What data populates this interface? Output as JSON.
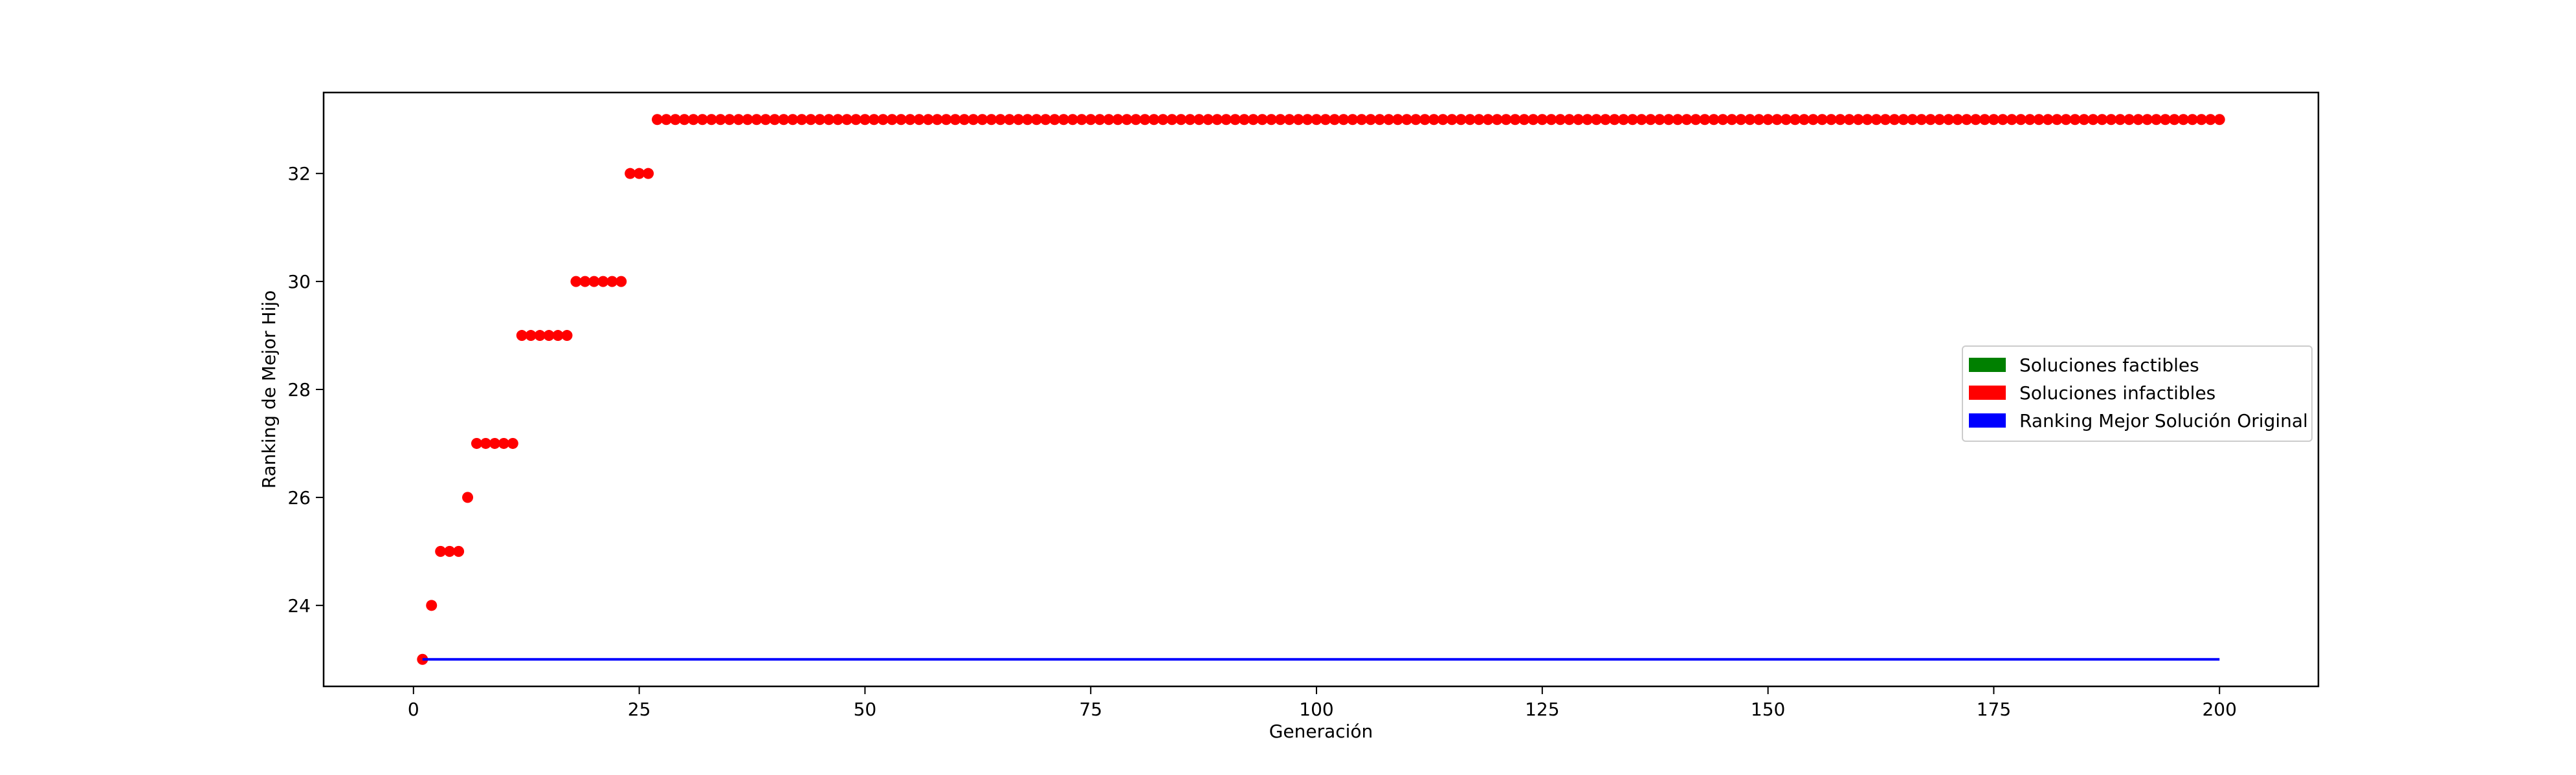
{
  "chart_data": {
    "type": "scatter",
    "title": "",
    "xlabel": "Generación",
    "ylabel": "Ranking de Mejor Hijo",
    "xlim": [
      -9.95,
      210.95
    ],
    "ylim": [
      22.5,
      33.5
    ],
    "xticks": [
      0,
      25,
      50,
      75,
      100,
      125,
      150,
      175,
      200
    ],
    "yticks": [
      24,
      26,
      28,
      30,
      32
    ],
    "grid": false,
    "legend_position": "center-right",
    "legend": [
      {
        "label": "Soluciones factibles",
        "color": "#008000"
      },
      {
        "label": "Soluciones infactibles",
        "color": "#ff0000"
      },
      {
        "label": "Ranking Mejor Solución Original",
        "color": "#0000ff"
      }
    ],
    "series": [
      {
        "kind": "scatter",
        "color": "#ff0000",
        "points": [
          [
            1,
            23
          ],
          [
            2,
            24
          ],
          [
            3,
            25
          ],
          [
            4,
            25
          ],
          [
            5,
            25
          ],
          [
            6,
            26
          ],
          [
            7,
            27
          ],
          [
            8,
            27
          ],
          [
            9,
            27
          ],
          [
            10,
            27
          ],
          [
            11,
            27
          ],
          [
            12,
            29
          ],
          [
            13,
            29
          ],
          [
            14,
            29
          ],
          [
            15,
            29
          ],
          [
            16,
            29
          ],
          [
            17,
            29
          ],
          [
            18,
            30
          ],
          [
            19,
            30
          ],
          [
            20,
            30
          ],
          [
            21,
            30
          ],
          [
            22,
            30
          ],
          [
            23,
            30
          ],
          [
            24,
            32
          ],
          [
            25,
            32
          ],
          [
            26,
            32
          ]
        ],
        "constant_from": 27,
        "constant_to": 200,
        "constant_value": 33
      },
      {
        "kind": "line",
        "color": "#0000ff",
        "x": [
          1,
          200
        ],
        "y": [
          23,
          23
        ]
      }
    ]
  }
}
